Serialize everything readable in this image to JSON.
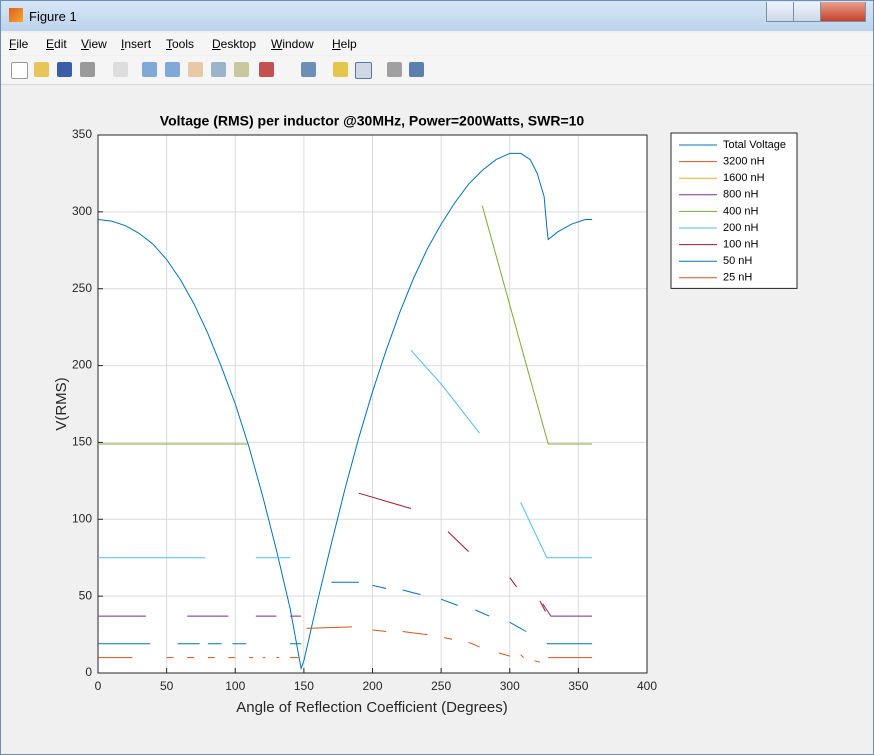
{
  "window": {
    "title": "Figure 1",
    "menu": [
      "File",
      "Edit",
      "View",
      "Insert",
      "Tools",
      "Desktop",
      "Window",
      "Help"
    ]
  },
  "chart_data": {
    "type": "line",
    "title": "Voltage (RMS) per inductor @30MHz, Power=200Watts, SWR=10",
    "xlabel": "Angle of Reflection Coefficient (Degrees)",
    "ylabel": "V(RMS)",
    "xlim": [
      0,
      400
    ],
    "xticks": [
      0,
      50,
      100,
      150,
      200,
      250,
      300,
      350,
      400
    ],
    "ylim": [
      0,
      350
    ],
    "yticks": [
      0,
      50,
      100,
      150,
      200,
      250,
      300,
      350
    ],
    "grid": true,
    "legend": "outside-right-top",
    "series": [
      {
        "name": "Total Voltage",
        "color": "#0072bd",
        "x": [
          0,
          10,
          20,
          30,
          40,
          50,
          60,
          70,
          80,
          90,
          100,
          110,
          120,
          130,
          140,
          148,
          150,
          160,
          170,
          180,
          190,
          200,
          210,
          220,
          230,
          240,
          250,
          260,
          270,
          280,
          290,
          300,
          308,
          315,
          320,
          325,
          327,
          328,
          335,
          345,
          355,
          360
        ],
        "values": [
          295,
          294,
          291,
          286,
          279,
          269,
          256,
          240,
          221,
          199,
          175,
          147,
          115,
          80,
          42,
          3,
          8,
          47,
          84,
          120,
          153,
          183,
          210,
          235,
          257,
          276,
          292,
          306,
          318,
          327,
          334,
          338,
          338,
          334,
          325,
          310,
          290,
          282,
          287,
          292,
          295,
          295
        ]
      },
      {
        "name": "3200 nH",
        "color": "#d95319",
        "x": [
          152,
          185,
          192,
          200,
          210,
          215,
          222,
          230,
          240,
          245,
          252,
          258,
          265,
          270,
          278,
          285,
          292,
          300,
          305,
          310
        ],
        "values": [
          29,
          30,
          null,
          28,
          27,
          null,
          27,
          26,
          25,
          null,
          23,
          22,
          null,
          20,
          17,
          null,
          13,
          11,
          null,
          10
        ]
      },
      {
        "name": "1600 nH",
        "color": "#edb120",
        "x": [
          0,
          100
        ],
        "values": [
          149,
          149
        ]
      },
      {
        "name": "800 nH",
        "color": "#7e2f8e",
        "x": [
          0,
          35,
          50,
          65,
          95,
          105,
          115,
          130,
          135,
          140,
          148,
          320,
          324,
          330,
          360
        ],
        "values": [
          37,
          37,
          null,
          37,
          37,
          null,
          37,
          37,
          null,
          37,
          37,
          null,
          45,
          37,
          37
        ]
      },
      {
        "name": "400 nH",
        "color": "#77ac30",
        "x": [
          0,
          110,
          200,
          280,
          328,
          360
        ],
        "values": [
          149,
          149,
          null,
          304,
          149,
          149
        ]
      },
      {
        "name": "200 nH",
        "color": "#4dbeee",
        "x": [
          0,
          78,
          95,
          115,
          140,
          180,
          228,
          250,
          278,
          295,
          308,
          327,
          360
        ],
        "values": [
          75,
          75,
          null,
          75,
          75,
          null,
          210,
          188,
          156,
          null,
          111,
          75,
          75
        ]
      },
      {
        "name": "100 nH",
        "color": "#a2142f",
        "x": [
          190,
          228,
          240,
          255,
          270,
          285,
          300,
          305,
          315,
          322,
          326
        ],
        "values": [
          117,
          107,
          null,
          92,
          79,
          null,
          62,
          56,
          null,
          47,
          40
        ]
      },
      {
        "name": "50 nH",
        "color": "#0072bd",
        "x": [
          0,
          38,
          48,
          58,
          74,
          77,
          80,
          90,
          94,
          98,
          108,
          125,
          140,
          148,
          160,
          170,
          190,
          195,
          200,
          210,
          215,
          222,
          235,
          240,
          250,
          262,
          268,
          275,
          285,
          292,
          300,
          312,
          318,
          327,
          360
        ],
        "values": [
          19,
          19,
          null,
          19,
          19,
          null,
          19,
          19,
          null,
          19,
          19,
          null,
          19,
          19,
          null,
          59,
          59,
          null,
          57,
          55,
          null,
          54,
          51,
          null,
          48,
          44,
          null,
          41,
          37,
          null,
          33,
          27,
          null,
          19,
          19
        ]
      },
      {
        "name": "25 nH",
        "color": "#d95319",
        "x": [
          0,
          25,
          38,
          50,
          55,
          60,
          65,
          70,
          75,
          80,
          85,
          90,
          95,
          100,
          105,
          110,
          113,
          116,
          120,
          122,
          126,
          130,
          132,
          136,
          140,
          146,
          305,
          308,
          310,
          315,
          318,
          322,
          325,
          328,
          330,
          360
        ],
        "values": [
          10,
          10,
          null,
          10,
          10,
          null,
          10,
          10,
          null,
          10,
          10,
          null,
          10,
          10,
          null,
          10,
          10,
          null,
          10,
          10,
          null,
          10,
          10,
          null,
          10,
          10,
          null,
          12,
          10,
          null,
          8,
          7,
          null,
          10,
          10,
          10
        ]
      }
    ]
  }
}
